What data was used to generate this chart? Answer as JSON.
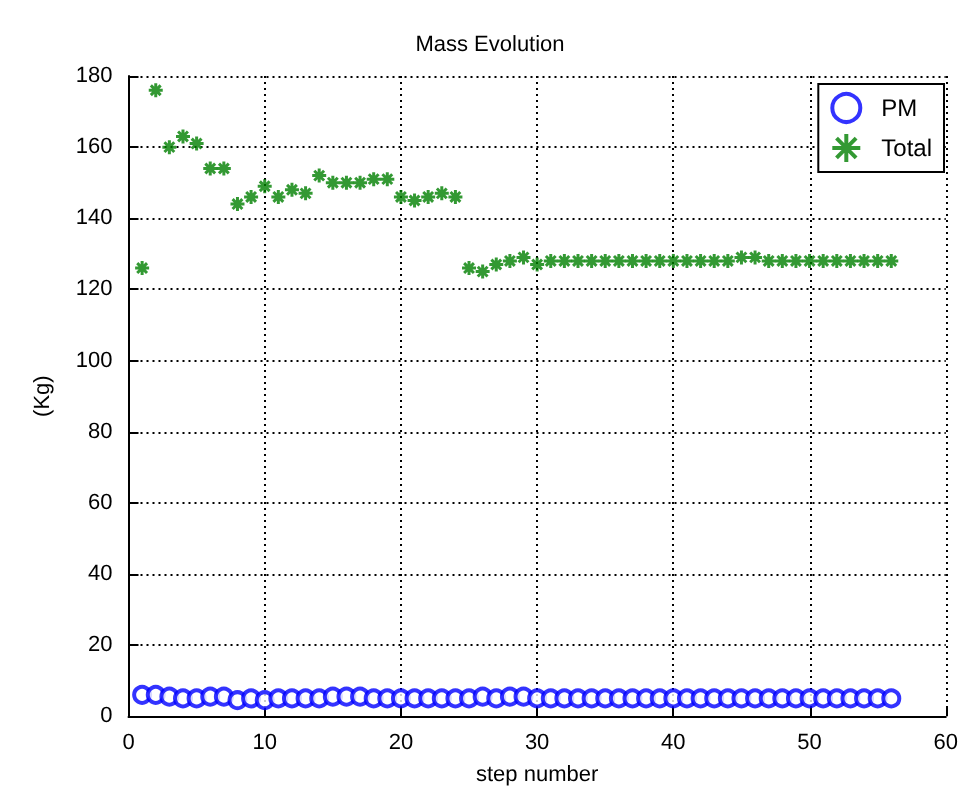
{
  "chart_data": {
    "type": "scatter",
    "title": "Mass Evolution",
    "xlabel": "step number",
    "ylabel": "(Kg)",
    "x": [
      1,
      2,
      3,
      4,
      5,
      6,
      7,
      8,
      9,
      10,
      11,
      12,
      13,
      14,
      15,
      16,
      17,
      18,
      19,
      20,
      21,
      22,
      23,
      24,
      25,
      26,
      27,
      28,
      29,
      30,
      31,
      32,
      33,
      34,
      35,
      36,
      37,
      38,
      39,
      40,
      41,
      42,
      43,
      44,
      45,
      46,
      47,
      48,
      49,
      50,
      51,
      52,
      53,
      54,
      55,
      56
    ],
    "series": [
      {
        "name": "PM",
        "color": "#0000ff",
        "marker": "circle",
        "values": [
          6,
          6,
          5.5,
          5,
          5,
          5.5,
          5.5,
          4.5,
          5,
          4.5,
          5,
          5,
          5,
          5,
          5.5,
          5.5,
          5.5,
          5,
          5,
          5,
          5,
          5,
          5,
          5,
          5,
          5.5,
          5,
          5.5,
          5.5,
          5,
          5,
          5,
          5,
          5,
          5,
          5,
          5,
          5,
          5,
          5,
          5,
          5,
          5,
          5,
          5,
          5,
          5,
          5,
          5,
          5,
          5,
          5,
          5,
          5,
          5,
          5
        ]
      },
      {
        "name": "Total",
        "color": "#008000",
        "marker": "cross",
        "values": [
          126,
          176,
          160,
          163,
          161,
          154,
          154,
          144,
          146,
          149,
          146,
          148,
          147,
          152,
          150,
          150,
          150,
          151,
          151,
          146,
          145,
          146,
          147,
          146,
          126,
          125,
          127,
          128,
          129,
          127,
          128,
          128,
          128,
          128,
          128,
          128,
          128,
          128,
          128,
          128,
          128,
          128,
          128,
          128,
          129,
          129,
          128,
          128,
          128,
          128,
          128,
          128,
          128,
          128,
          128,
          128
        ]
      }
    ],
    "xlim": [
      0,
      60
    ],
    "xticks": [
      0,
      10,
      20,
      30,
      40,
      50,
      60
    ],
    "ylim": [
      0,
      180
    ],
    "yticks": [
      0,
      20,
      40,
      60,
      80,
      100,
      120,
      140,
      160,
      180
    ],
    "grid": true,
    "legend": "top right"
  }
}
